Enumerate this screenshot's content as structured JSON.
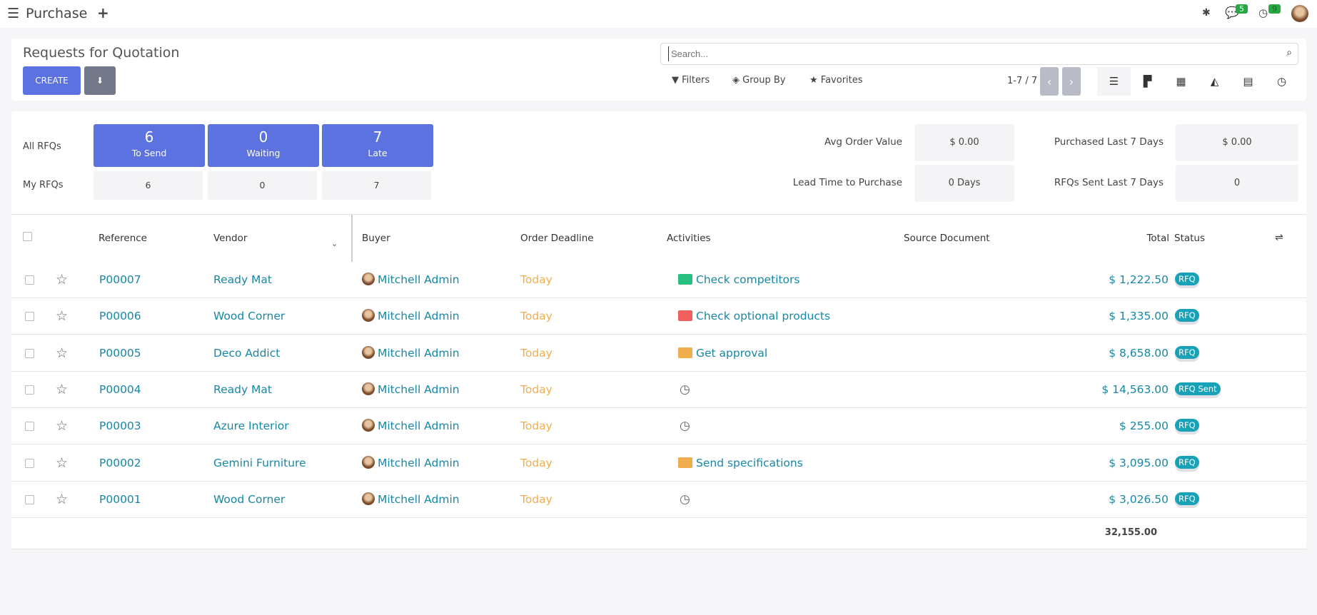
{
  "app": {
    "title": "Purchase",
    "menu_icon": "hamburger-icon",
    "new_icon": "plus-icon",
    "debug_icon": "bug-icon",
    "messages_count": "5",
    "activities_count": "9"
  },
  "control": {
    "title": "Requests for Quotation",
    "create_label": "CREATE",
    "download_icon": "download-icon",
    "search_placeholder": "Search...",
    "filters": "Filters",
    "group_by": "Group By",
    "favorites": "Favorites",
    "pager": "1-7 / 7"
  },
  "dashboard": {
    "all_label": "All RFQs",
    "my_label": "My RFQs",
    "tiles": [
      {
        "value": "6",
        "label": "To Send",
        "mine": "6"
      },
      {
        "value": "0",
        "label": "Waiting",
        "mine": "0"
      },
      {
        "value": "7",
        "label": "Late",
        "mine": "7"
      }
    ],
    "stats": [
      {
        "label": "Avg Order Value",
        "value": "$ 0.00"
      },
      {
        "label": "Purchased Last 7 Days",
        "value": "$ 0.00"
      },
      {
        "label": "Lead Time to Purchase",
        "value": "0 Days"
      },
      {
        "label": "RFQs Sent Last 7 Days",
        "value": "0"
      }
    ]
  },
  "table": {
    "columns": [
      "Reference",
      "Vendor",
      "Buyer",
      "Order Deadline",
      "Activities",
      "Source Document",
      "Total",
      "Status"
    ],
    "rows": [
      {
        "ref": "P00007",
        "vendor": "Ready Mat",
        "buyer": "Mitchell Admin",
        "deadline": "Today",
        "activity": "Check competitors",
        "activity_color": "#28c081",
        "total": "$ 1,222.50",
        "status": "RFQ"
      },
      {
        "ref": "P00006",
        "vendor": "Wood Corner",
        "buyer": "Mitchell Admin",
        "deadline": "Today",
        "activity": "Check optional products",
        "activity_color": "#f06060",
        "total": "$ 1,335.00",
        "status": "RFQ"
      },
      {
        "ref": "P00005",
        "vendor": "Deco Addict",
        "buyer": "Mitchell Admin",
        "deadline": "Today",
        "activity": "Get approval",
        "activity_color": "#f0ad4e",
        "total": "$ 8,658.00",
        "status": "RFQ"
      },
      {
        "ref": "P00004",
        "vendor": "Ready Mat",
        "buyer": "Mitchell Admin",
        "deadline": "Today",
        "activity": "",
        "activity_color": "",
        "total": "$ 14,563.00",
        "status": "RFQ Sent"
      },
      {
        "ref": "P00003",
        "vendor": "Azure Interior",
        "buyer": "Mitchell Admin",
        "deadline": "Today",
        "activity": "",
        "activity_color": "",
        "total": "$ 255.00",
        "status": "RFQ"
      },
      {
        "ref": "P00002",
        "vendor": "Gemini Furniture",
        "buyer": "Mitchell Admin",
        "deadline": "Today",
        "activity": "Send specifications",
        "activity_color": "#f0ad4e",
        "total": "$ 3,095.00",
        "status": "RFQ"
      },
      {
        "ref": "P00001",
        "vendor": "Wood Corner",
        "buyer": "Mitchell Admin",
        "deadline": "Today",
        "activity": "",
        "activity_color": "",
        "total": "$ 3,026.50",
        "status": "RFQ"
      }
    ],
    "sum_total": "32,155.00"
  },
  "colors": {
    "primary": "#5b72e0",
    "link": "#1887a5",
    "today": "#f0ad4e",
    "badge": "#17a2b8"
  }
}
